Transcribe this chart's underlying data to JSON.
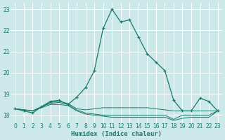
{
  "xlabel": "Humidex (Indice chaleur)",
  "xlim": [
    -0.5,
    23.5
  ],
  "ylim": [
    17.65,
    23.3
  ],
  "yticks": [
    18,
    19,
    20,
    21,
    22,
    23
  ],
  "xticks": [
    0,
    1,
    2,
    3,
    4,
    5,
    6,
    7,
    8,
    9,
    10,
    11,
    12,
    13,
    14,
    15,
    16,
    17,
    18,
    19,
    20,
    21,
    22,
    23
  ],
  "bg_color": "#cce8e8",
  "grid_color": "#b0d4d4",
  "line_color": "#1a7a6a",
  "line1_x": [
    0,
    1,
    2,
    3,
    4,
    5,
    6,
    7,
    8,
    9,
    10,
    11,
    12,
    13,
    14,
    15,
    16,
    17,
    18,
    19,
    20,
    21,
    22,
    23
  ],
  "line1_y": [
    18.3,
    18.2,
    18.1,
    18.4,
    18.65,
    18.7,
    18.5,
    18.85,
    19.3,
    20.1,
    22.1,
    23.0,
    22.4,
    22.5,
    21.7,
    20.9,
    20.5,
    20.1,
    18.7,
    18.2,
    18.2,
    18.8,
    18.65,
    18.2
  ],
  "line2_x": [
    0,
    1,
    2,
    3,
    4,
    5,
    6,
    7,
    8,
    9,
    10,
    11,
    12,
    13,
    14,
    15,
    16,
    17,
    18,
    19,
    20,
    21,
    22,
    23
  ],
  "line2_y": [
    18.3,
    18.25,
    18.2,
    18.4,
    18.6,
    18.65,
    18.55,
    18.3,
    18.25,
    18.3,
    18.35,
    18.35,
    18.35,
    18.35,
    18.35,
    18.35,
    18.3,
    18.25,
    18.2,
    18.2,
    18.2,
    18.2,
    18.2,
    18.2
  ],
  "line3_x": [
    0,
    1,
    2,
    3,
    4,
    5,
    6,
    7,
    8,
    9,
    10,
    11,
    12,
    13,
    14,
    15,
    16,
    17,
    18,
    19,
    20,
    21,
    22,
    23
  ],
  "line3_y": [
    18.3,
    18.25,
    18.2,
    18.4,
    18.55,
    18.6,
    18.5,
    18.25,
    18.1,
    18.05,
    18.0,
    18.0,
    18.0,
    18.0,
    18.0,
    18.0,
    18.0,
    18.0,
    17.8,
    18.0,
    18.0,
    18.0,
    18.0,
    18.2
  ],
  "line4_x": [
    0,
    1,
    2,
    3,
    4,
    5,
    6,
    7,
    8,
    9,
    10,
    11,
    12,
    13,
    14,
    15,
    16,
    17,
    18,
    19,
    20,
    21,
    22,
    23
  ],
  "line4_y": [
    18.3,
    18.25,
    18.2,
    18.35,
    18.5,
    18.5,
    18.45,
    18.2,
    18.05,
    18.0,
    17.95,
    17.9,
    17.9,
    17.9,
    17.9,
    17.9,
    17.9,
    17.9,
    17.75,
    17.85,
    17.9,
    17.9,
    17.9,
    18.2
  ]
}
